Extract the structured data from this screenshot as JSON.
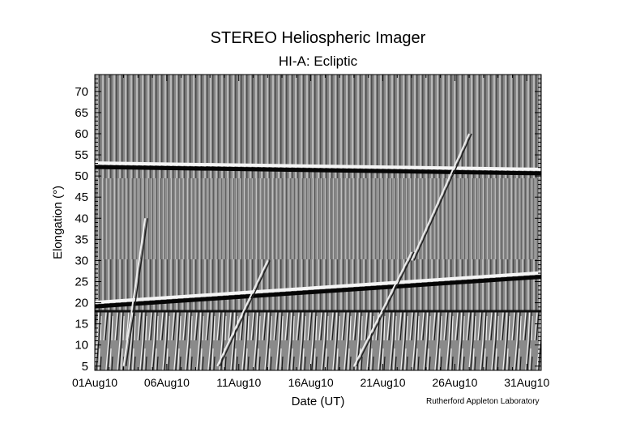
{
  "chart_data": {
    "type": "heatmap",
    "title": "STEREO Heliospheric Imager",
    "subtitle": "HI-A: Ecliptic",
    "xlabel": "Date (UT)",
    "ylabel": "Elongation (°)",
    "x_tick_labels": [
      "01Aug10",
      "06Aug10",
      "11Aug10",
      "16Aug10",
      "21Aug10",
      "26Aug10",
      "31Aug10"
    ],
    "x_tick_days": [
      0,
      5,
      10,
      15,
      20,
      25,
      30
    ],
    "xlim_days": [
      0,
      31
    ],
    "y_ticks": [
      5,
      10,
      15,
      20,
      25,
      30,
      35,
      40,
      45,
      50,
      55,
      60,
      65,
      70
    ],
    "ylim": [
      4,
      74
    ],
    "colormap": "grayscale",
    "planet_tracks": [
      {
        "from": [
          0,
          52.5
        ],
        "to": [
          31,
          51.0
        ]
      },
      {
        "from": [
          0,
          19.5
        ],
        "to": [
          31,
          26.5
        ]
      }
    ],
    "fov_boundary_elongation": 18
  },
  "credit": "Rutherford Appleton Laboratory"
}
